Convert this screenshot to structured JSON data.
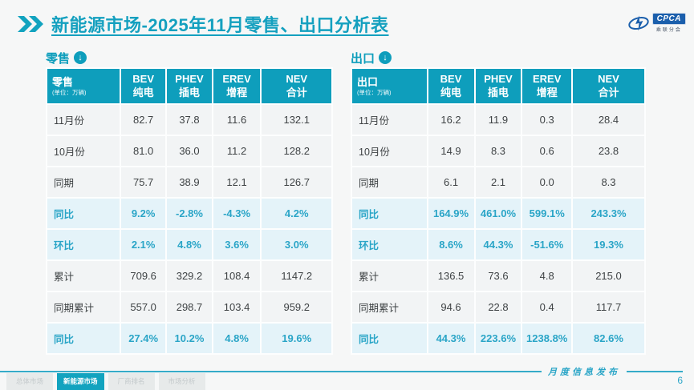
{
  "header": {
    "title": "新能源市场-2025年11月零售、出口分析表"
  },
  "logo": {
    "acronym": "CPCA",
    "subtext": "乘联分会"
  },
  "icons": {
    "title_marker": "double-chevron-right-icon",
    "section_marker": "circle-down-arrow-icon",
    "section_arrow_glyph": "↓"
  },
  "colors": {
    "teal": "#0E9EBC",
    "teal_text": "#2AA5C7",
    "highlight_row_bg": "#E4F3F9",
    "row_bg": "#F2F4F5",
    "dark_text": "#3F4345",
    "logo_blue": "#1B5FAC"
  },
  "tables": {
    "retail": {
      "section_label": "零售",
      "corner_title": "零售",
      "corner_unit": "(单位：万辆)",
      "columns": [
        {
          "en": "BEV",
          "zh": "纯电"
        },
        {
          "en": "PHEV",
          "zh": "插电"
        },
        {
          "en": "EREV",
          "zh": "增程"
        },
        {
          "en": "NEV",
          "zh": "合计"
        }
      ],
      "rows": [
        {
          "label": "11月份",
          "values": [
            "82.7",
            "37.8",
            "11.6",
            "132.1"
          ],
          "highlight": false
        },
        {
          "label": "10月份",
          "values": [
            "81.0",
            "36.0",
            "11.2",
            "128.2"
          ],
          "highlight": false
        },
        {
          "label": "同期",
          "values": [
            "75.7",
            "38.9",
            "12.1",
            "126.7"
          ],
          "highlight": false
        },
        {
          "label": "同比",
          "values": [
            "9.2%",
            "-2.8%",
            "-4.3%",
            "4.2%"
          ],
          "highlight": true
        },
        {
          "label": "环比",
          "values": [
            "2.1%",
            "4.8%",
            "3.6%",
            "3.0%"
          ],
          "highlight": true
        },
        {
          "label": "累计",
          "values": [
            "709.6",
            "329.2",
            "108.4",
            "1147.2"
          ],
          "highlight": false
        },
        {
          "label": "同期累计",
          "values": [
            "557.0",
            "298.7",
            "103.4",
            "959.2"
          ],
          "highlight": false
        },
        {
          "label": "同比",
          "values": [
            "27.4%",
            "10.2%",
            "4.8%",
            "19.6%"
          ],
          "highlight": true
        }
      ]
    },
    "export": {
      "section_label": "出口",
      "corner_title": "出口",
      "corner_unit": "(单位：万辆)",
      "columns": [
        {
          "en": "BEV",
          "zh": "纯电"
        },
        {
          "en": "PHEV",
          "zh": "插电"
        },
        {
          "en": "EREV",
          "zh": "增程"
        },
        {
          "en": "NEV",
          "zh": "合计"
        }
      ],
      "rows": [
        {
          "label": "11月份",
          "values": [
            "16.2",
            "11.9",
            "0.3",
            "28.4"
          ],
          "highlight": false
        },
        {
          "label": "10月份",
          "values": [
            "14.9",
            "8.3",
            "0.6",
            "23.8"
          ],
          "highlight": false
        },
        {
          "label": "同期",
          "values": [
            "6.1",
            "2.1",
            "0.0",
            "8.3"
          ],
          "highlight": false
        },
        {
          "label": "同比",
          "values": [
            "164.9%",
            "461.0%",
            "599.1%",
            "243.3%"
          ],
          "highlight": true
        },
        {
          "label": "环比",
          "values": [
            "8.6%",
            "44.3%",
            "-51.6%",
            "19.3%"
          ],
          "highlight": true
        },
        {
          "label": "累计",
          "values": [
            "136.5",
            "73.6",
            "4.8",
            "215.0"
          ],
          "highlight": false
        },
        {
          "label": "同期累计",
          "values": [
            "94.6",
            "22.8",
            "0.4",
            "117.7"
          ],
          "highlight": false
        },
        {
          "label": "同比",
          "values": [
            "44.3%",
            "223.6%",
            "1238.8%",
            "82.6%"
          ],
          "highlight": true
        }
      ]
    }
  },
  "footer": {
    "note": "月度信息发布",
    "page_number": "6",
    "tabs": [
      {
        "label": "总体市场",
        "active": false
      },
      {
        "label": "新能源市场",
        "active": true
      },
      {
        "label": "厂商排名",
        "active": false
      },
      {
        "label": "市场分析",
        "active": false
      }
    ]
  }
}
